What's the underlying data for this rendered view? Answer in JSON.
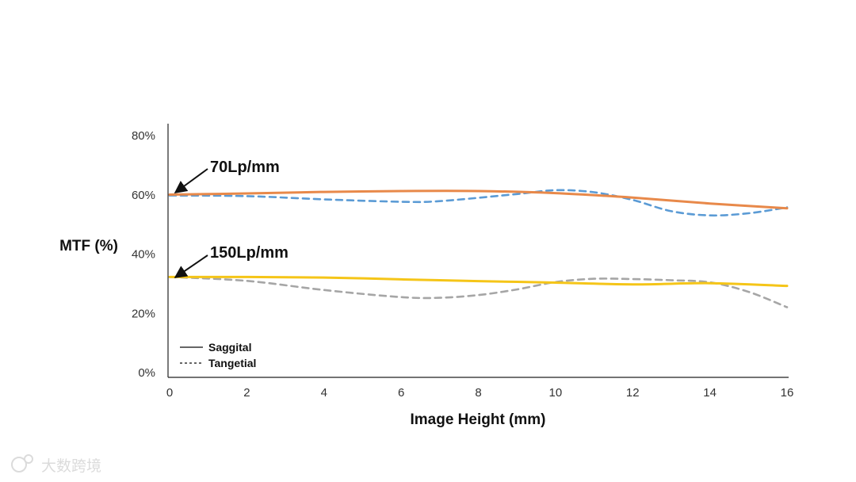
{
  "chart_data": {
    "type": "line",
    "ylabel": "MTF (%)",
    "xlabel": "Image Height (mm)",
    "xlim": [
      0,
      16
    ],
    "ylim": [
      0,
      80
    ],
    "x_ticks": [
      "0",
      "2",
      "4",
      "6",
      "8",
      "10",
      "12",
      "14",
      "16"
    ],
    "y_ticks": [
      "0%",
      "20%",
      "40%",
      "60%",
      "80%"
    ],
    "grid": false,
    "legend": {
      "placement": "bottom-left",
      "entries": [
        {
          "label": "Saggital",
          "style": "solid"
        },
        {
          "label": "Tangetial",
          "style": "dashed"
        }
      ]
    },
    "annotations": [
      {
        "text": "70Lp/mm",
        "x": 0,
        "y": 60
      },
      {
        "text": "150Lp/mm",
        "x": 0,
        "y": 32
      }
    ],
    "series": [
      {
        "style": "solid",
        "color": "#e8894a",
        "x": [
          0,
          2,
          4,
          6,
          8,
          10,
          12,
          14,
          16
        ],
        "y": [
          59.8,
          60.2,
          60.7,
          61.0,
          61.0,
          60.3,
          58.8,
          56.8,
          55.2
        ]
      },
      {
        "style": "dashed",
        "color": "#5b9bd5",
        "x": [
          0,
          2,
          4,
          6,
          7,
          9,
          10,
          11,
          12,
          13,
          14,
          15,
          16
        ],
        "y": [
          59.5,
          59.3,
          58.2,
          57.4,
          57.6,
          60.0,
          61.3,
          60.6,
          58.0,
          54.2,
          52.8,
          53.5,
          55.5
        ]
      },
      {
        "style": "solid",
        "color": "#f5c518",
        "x": [
          0,
          2,
          4,
          6,
          8,
          10,
          12,
          14,
          16
        ],
        "y": [
          32.0,
          32.0,
          31.8,
          31.2,
          30.6,
          30.1,
          29.5,
          29.9,
          29.0
        ]
      },
      {
        "style": "dashed",
        "color": "#a6a6a6",
        "x": [
          0,
          2,
          4,
          6,
          7,
          8,
          9,
          10,
          11,
          12,
          13,
          14,
          15,
          16
        ],
        "y": [
          32.0,
          30.7,
          27.6,
          25.2,
          25.0,
          25.9,
          27.8,
          30.3,
          31.4,
          31.3,
          30.9,
          30.2,
          27.0,
          21.8
        ]
      }
    ]
  },
  "watermark": {
    "text": "大数跨境"
  }
}
